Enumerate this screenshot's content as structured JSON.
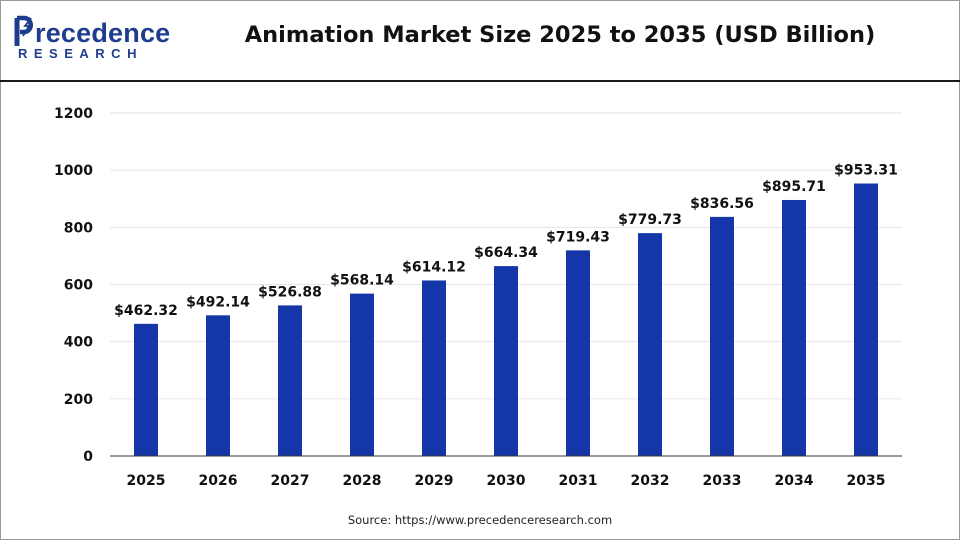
{
  "header": {
    "logo_word": "recedence",
    "logo_sub": "RESEARCH",
    "title": "Animation Market Size 2025 to 2035 (USD Billion)"
  },
  "footer": {
    "source": "Source: https://www.precedenceresearch.com"
  },
  "colors": {
    "bar": "#1436a8",
    "logo": "#1f3c8f",
    "grid": "#e6e6e6"
  },
  "chart_data": {
    "type": "bar",
    "title": "Animation Market Size 2025 to 2035 (USD Billion)",
    "xlabel": "",
    "ylabel": "",
    "ylim": [
      0,
      1200
    ],
    "yticks": [
      0,
      200,
      400,
      600,
      800,
      1000,
      1200
    ],
    "categories": [
      "2025",
      "2026",
      "2027",
      "2028",
      "2029",
      "2030",
      "2031",
      "2032",
      "2033",
      "2034",
      "2035"
    ],
    "values": [
      462.32,
      492.14,
      526.88,
      568.14,
      614.12,
      664.34,
      719.43,
      779.73,
      836.56,
      895.71,
      953.31
    ],
    "labels": [
      "$462.32",
      "$492.14",
      "$526.88",
      "$568.14",
      "$614.12",
      "$664.34",
      "$719.43",
      "$779.73",
      "$836.56",
      "$895.71",
      "$953.31"
    ],
    "grid": true,
    "legend": "none"
  }
}
